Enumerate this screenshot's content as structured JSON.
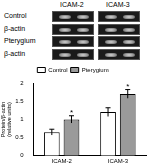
{
  "blot": {
    "columns": [
      "ICAM-2",
      "ICAM-3"
    ],
    "rows": [
      "Control",
      "β-actin",
      "Pterygium",
      "β-actin"
    ]
  },
  "chart_data": {
    "type": "bar",
    "categories": [
      "ICAM-2",
      "ICAM-3"
    ],
    "series": [
      {
        "name": "Control",
        "color": "#ffffff",
        "values": [
          0.65,
          1.2
        ],
        "errors": [
          0.08,
          0.12
        ]
      },
      {
        "name": "Pterygium",
        "color": "#9a9a9a",
        "values": [
          1.0,
          1.7
        ],
        "errors": [
          0.1,
          0.12
        ]
      }
    ],
    "y_label": [
      "Protein/β-actin",
      "(relative units)"
    ],
    "ylim": [
      0,
      2
    ],
    "yticks": [
      0,
      0.5,
      1,
      1.5,
      2
    ],
    "grid": false,
    "legend": "top",
    "annotations": [
      {
        "text": "*",
        "series": "Pterygium",
        "category": "ICAM-2"
      },
      {
        "text": "*",
        "series": "Pterygium",
        "category": "ICAM-3"
      }
    ]
  }
}
